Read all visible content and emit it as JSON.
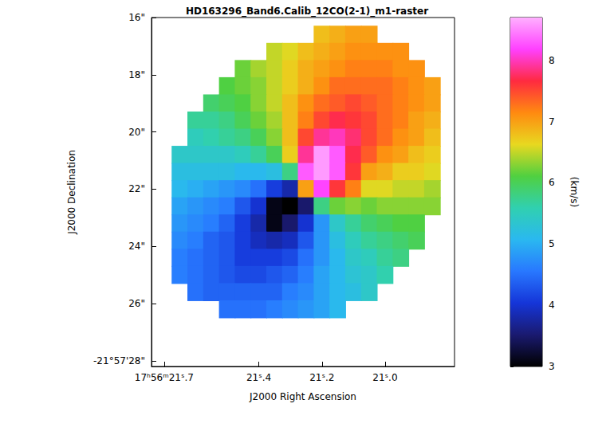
{
  "chart_data": {
    "type": "heatmap",
    "title": "HD163296_Band6.Calib_12CO(2-1)_m1-raster",
    "x_label": "J2000 Right Ascension",
    "y_label": "J2000 Declination",
    "x": [
      21.65,
      21.6,
      21.55,
      21.5,
      21.45,
      21.4,
      21.35,
      21.3,
      21.25,
      21.2,
      21.15,
      21.1,
      21.05,
      21.0,
      20.95,
      20.9,
      20.85
    ],
    "y": [
      16.6,
      17.2,
      17.8,
      18.4,
      19.0,
      19.6,
      20.2,
      20.8,
      21.4,
      22.0,
      22.6,
      23.2,
      23.8,
      24.4,
      25.0,
      25.6,
      26.2
    ],
    "values": [
      [
        null,
        null,
        null,
        null,
        null,
        null,
        null,
        null,
        null,
        6.8,
        6.9,
        7.0,
        7.0,
        null,
        null,
        null,
        null
      ],
      [
        null,
        null,
        null,
        null,
        null,
        null,
        6.5,
        6.6,
        6.8,
        6.9,
        7.0,
        7.1,
        7.1,
        7.1,
        7.1,
        null,
        null
      ],
      [
        null,
        null,
        null,
        null,
        6.2,
        6.4,
        6.5,
        6.7,
        6.9,
        7.0,
        7.1,
        7.2,
        7.2,
        7.2,
        7.1,
        7.1,
        null
      ],
      [
        null,
        null,
        null,
        6.1,
        6.2,
        6.3,
        6.5,
        6.7,
        6.9,
        7.1,
        7.3,
        7.3,
        7.3,
        7.3,
        7.2,
        7.1,
        7.0
      ],
      [
        null,
        null,
        5.9,
        6.0,
        6.1,
        6.3,
        6.5,
        6.8,
        7.1,
        7.3,
        7.4,
        7.5,
        7.4,
        7.3,
        7.2,
        7.1,
        7.0
      ],
      [
        null,
        5.7,
        5.7,
        5.8,
        6.0,
        6.2,
        6.4,
        6.8,
        7.2,
        7.5,
        7.7,
        7.6,
        7.5,
        7.3,
        7.2,
        7.0,
        6.9
      ],
      [
        null,
        5.5,
        5.6,
        5.7,
        5.8,
        6.0,
        6.3,
        6.8,
        7.5,
        7.9,
        8.0,
        7.8,
        7.5,
        7.3,
        7.1,
        7.0,
        6.8
      ],
      [
        5.4,
        5.4,
        5.4,
        5.4,
        5.5,
        5.7,
        6.0,
        6.7,
        7.9,
        8.6,
        8.3,
        7.7,
        7.4,
        7.1,
        7.0,
        6.8,
        6.7
      ],
      [
        5.2,
        5.2,
        5.2,
        5.2,
        5.1,
        5.1,
        5.2,
        5.8,
        8.3,
        8.6,
        8.3,
        7.6,
        7.0,
        6.9,
        6.7,
        6.7,
        6.6
      ],
      [
        5.1,
        5.0,
        4.9,
        4.8,
        4.7,
        4.5,
        4.1,
        3.8,
        7.0,
        8.2,
        7.6,
        7.2,
        6.6,
        6.6,
        6.5,
        6.5,
        6.4
      ],
      [
        4.9,
        4.8,
        4.7,
        4.6,
        4.3,
        4.0,
        3.1,
        3.0,
        3.5,
        5.8,
        6.2,
        6.3,
        6.2,
        6.3,
        6.3,
        6.3,
        6.3
      ],
      [
        4.8,
        4.7,
        4.6,
        4.4,
        4.1,
        3.8,
        3.1,
        3.5,
        4.0,
        4.8,
        5.4,
        5.7,
        5.9,
        6.0,
        6.1,
        6.1,
        null
      ],
      [
        4.7,
        4.6,
        4.4,
        4.3,
        4.1,
        3.9,
        3.8,
        3.9,
        4.3,
        4.8,
        5.2,
        5.5,
        5.7,
        5.8,
        5.9,
        6.0,
        null
      ],
      [
        4.6,
        4.5,
        4.4,
        4.3,
        4.1,
        4.1,
        4.1,
        4.2,
        4.5,
        4.8,
        5.1,
        5.4,
        5.5,
        5.7,
        5.8,
        null,
        null
      ],
      [
        4.6,
        4.5,
        4.4,
        4.3,
        4.2,
        4.2,
        4.3,
        4.4,
        4.6,
        4.9,
        5.1,
        5.3,
        5.4,
        5.6,
        null,
        null,
        null
      ],
      [
        null,
        4.5,
        4.4,
        4.4,
        4.4,
        4.4,
        4.4,
        4.6,
        4.7,
        4.9,
        5.1,
        5.2,
        5.4,
        null,
        null,
        null,
        null
      ],
      [
        null,
        null,
        null,
        4.5,
        4.5,
        4.5,
        4.6,
        4.7,
        4.8,
        4.9,
        5.1,
        null,
        null,
        null,
        null,
        null,
        null
      ]
    ],
    "xlim": [
      21.74,
      20.78
    ],
    "ylim": [
      28.2,
      16
    ],
    "xticks": [
      {
        "value": 21.7,
        "label": "17ʰ56ᵐ21ˢ.7"
      },
      {
        "value": 21.4,
        "label": "21ˢ.4"
      },
      {
        "value": 21.2,
        "label": "21ˢ.2"
      },
      {
        "value": 21.0,
        "label": "21ˢ.0"
      }
    ],
    "yticks": [
      {
        "value": 16,
        "label": "16\""
      },
      {
        "value": 18,
        "label": "18\""
      },
      {
        "value": 20,
        "label": "20\""
      },
      {
        "value": 22,
        "label": "22\""
      },
      {
        "value": 24,
        "label": "24\""
      },
      {
        "value": 26,
        "label": "26\""
      },
      {
        "value": 28,
        "label": "-21°57'28\""
      }
    ],
    "colorbar": {
      "label": "(km/s)",
      "lim": [
        3,
        8.7
      ],
      "ticks": [
        3,
        4,
        5,
        6,
        7,
        8
      ]
    },
    "grid": false
  }
}
